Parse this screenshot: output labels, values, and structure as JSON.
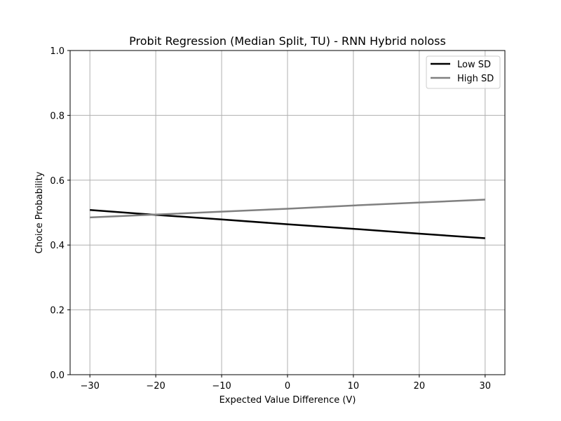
{
  "chart_data": {
    "type": "line",
    "title": "Probit Regression (Median Split, TU) - RNN Hybrid noloss",
    "xlabel": "Expected Value Difference (V)",
    "ylabel": "Choice Probability",
    "xlim": [
      -33,
      33
    ],
    "ylim": [
      0.0,
      1.0
    ],
    "xticks": [
      -30,
      -20,
      -10,
      0,
      10,
      20,
      30
    ],
    "xtick_labels": [
      "−30",
      "−20",
      "−10",
      "0",
      "10",
      "20",
      "30"
    ],
    "yticks": [
      0.0,
      0.2,
      0.4,
      0.6,
      0.8,
      1.0
    ],
    "ytick_labels": [
      "0.0",
      "0.2",
      "0.4",
      "0.6",
      "0.8",
      "1.0"
    ],
    "grid": true,
    "legend_position": "top-right",
    "series": [
      {
        "name": "Low SD",
        "color": "#000000",
        "x": [
          -30,
          -20,
          -10,
          0,
          10,
          20,
          30
        ],
        "y": [
          0.508,
          0.493,
          0.479,
          0.464,
          0.45,
          0.435,
          0.421
        ]
      },
      {
        "name": "High SD",
        "color": "#808080",
        "x": [
          -30,
          -20,
          -10,
          0,
          10,
          20,
          30
        ],
        "y": [
          0.485,
          0.494,
          0.503,
          0.512,
          0.522,
          0.531,
          0.54
        ]
      }
    ]
  }
}
